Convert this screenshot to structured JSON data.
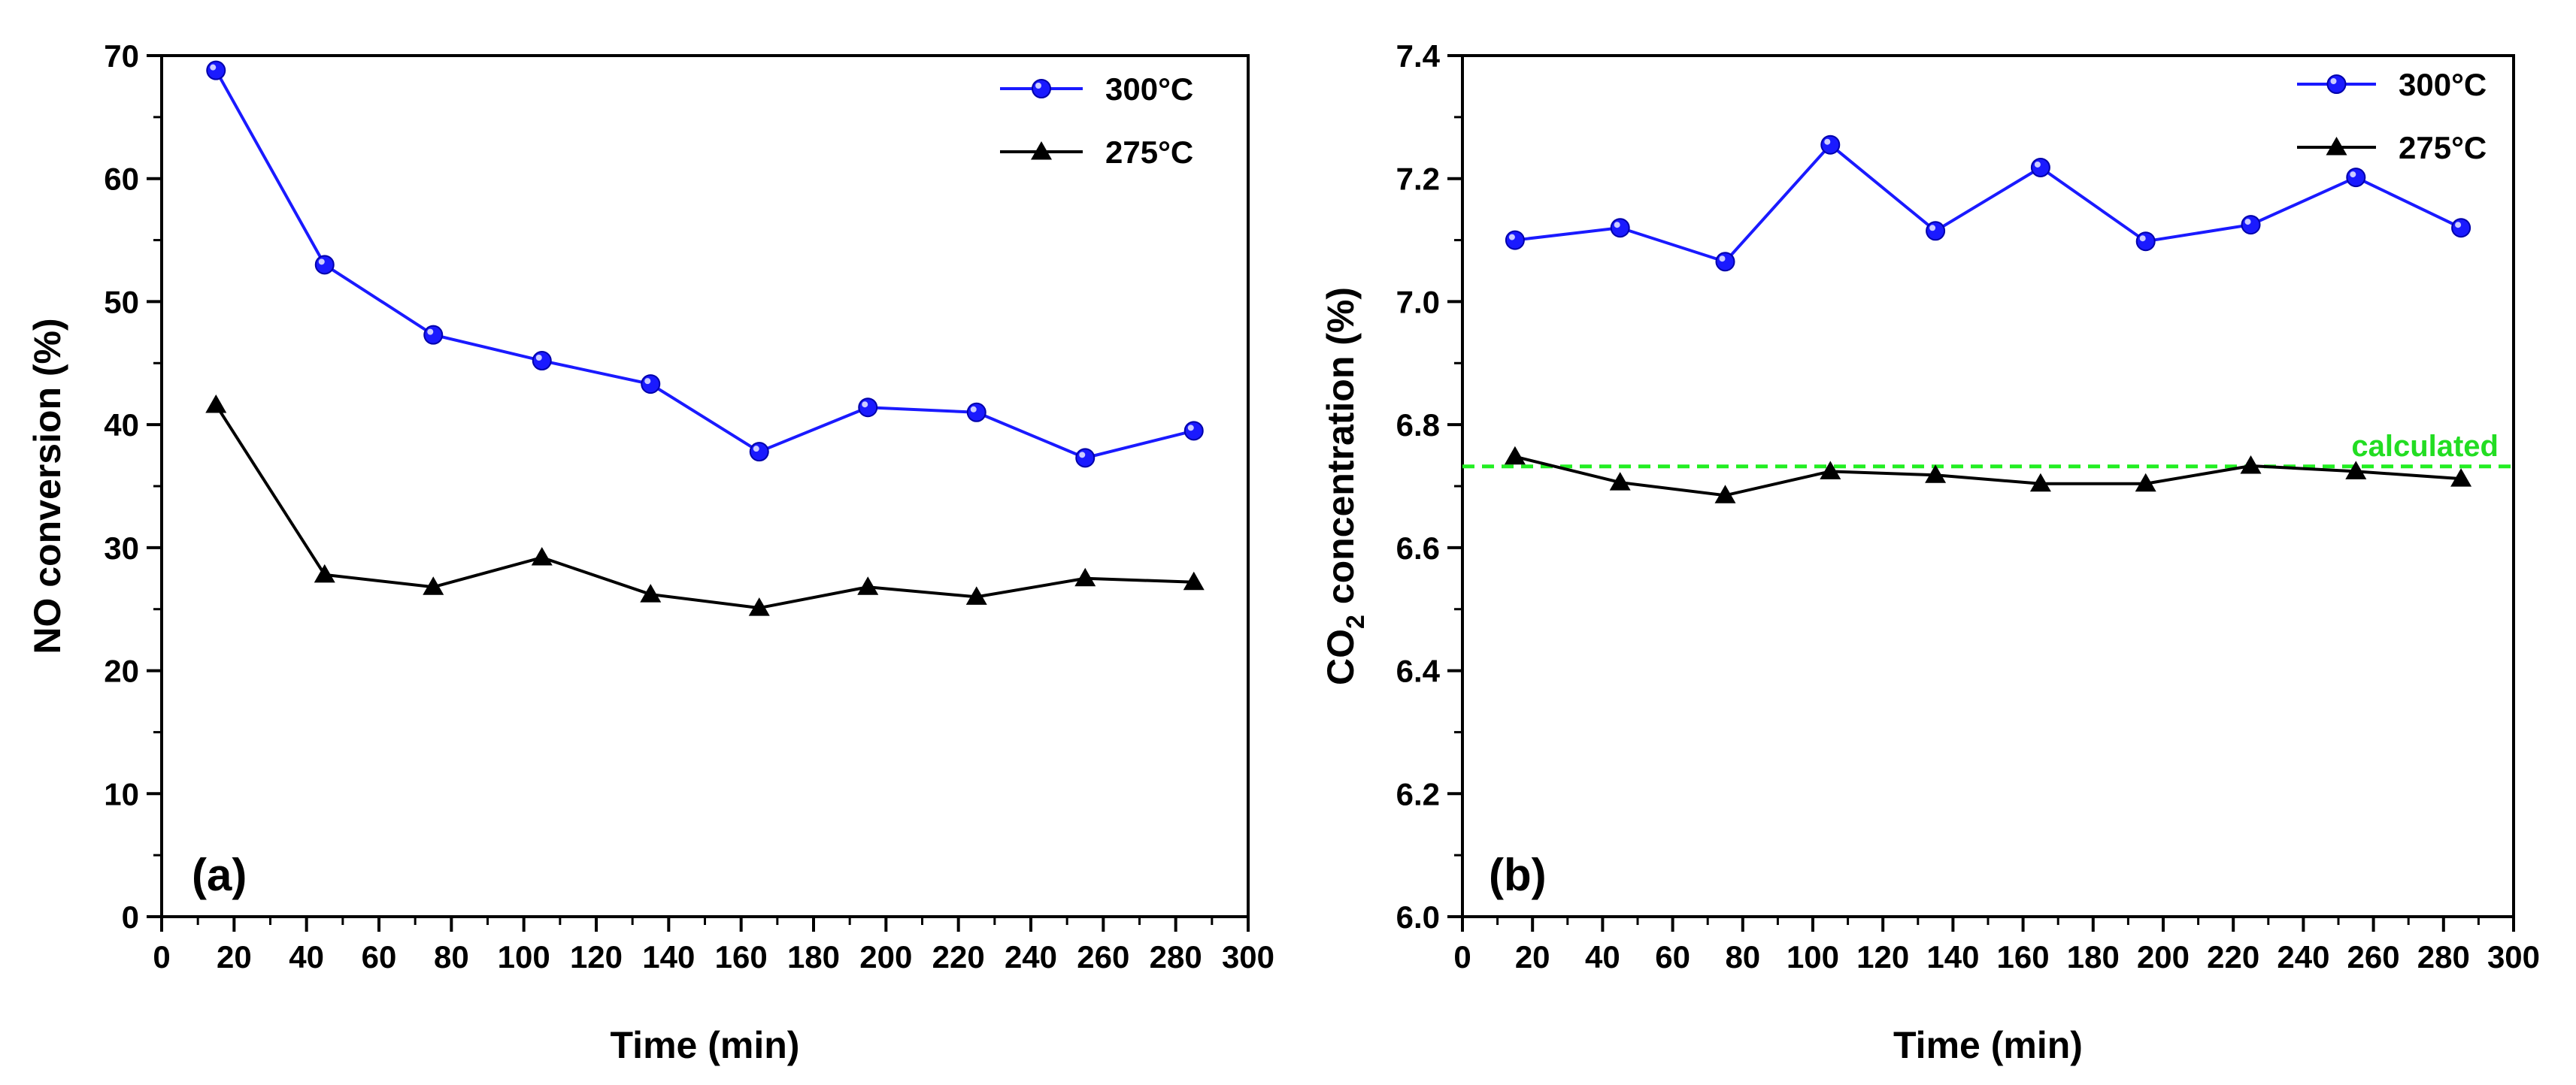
{
  "chart_data": [
    {
      "type": "line",
      "panel_label": "(a)",
      "title": "",
      "xlabel": "Time (min)",
      "ylabel": "NO conversion (%)",
      "xlim": [
        0,
        300
      ],
      "ylim": [
        0,
        70
      ],
      "xticks": [
        0,
        20,
        40,
        60,
        80,
        100,
        120,
        140,
        160,
        180,
        200,
        220,
        240,
        260,
        280,
        300
      ],
      "yticks": [
        0,
        10,
        20,
        30,
        40,
        50,
        60,
        70
      ],
      "grid": false,
      "legend_position": "top-right",
      "x": [
        15,
        45,
        75,
        105,
        135,
        165,
        195,
        225,
        255,
        285
      ],
      "series": [
        {
          "name": "300°C",
          "color": "#1a1aff",
          "marker": "circle",
          "values": [
            68.8,
            53.0,
            47.3,
            45.2,
            43.3,
            37.8,
            41.4,
            41.0,
            37.3,
            39.5
          ]
        },
        {
          "name": "275°C",
          "color": "#000000",
          "marker": "triangle",
          "values": [
            41.6,
            27.8,
            26.8,
            29.2,
            26.2,
            25.1,
            26.8,
            26.0,
            27.5,
            27.2
          ]
        }
      ]
    },
    {
      "type": "line",
      "panel_label": "(b)",
      "title": "",
      "xlabel": "Time (min)",
      "ylabel_main": "CO",
      "ylabel_sub": "2",
      "ylabel_rest": " concentration (%)",
      "xlim": [
        0,
        300
      ],
      "ylim": [
        6.0,
        7.4
      ],
      "xticks": [
        0,
        20,
        40,
        60,
        80,
        100,
        120,
        140,
        160,
        180,
        200,
        220,
        240,
        260,
        280,
        300
      ],
      "yticks": [
        6.0,
        6.2,
        6.4,
        6.6,
        6.8,
        7.0,
        7.2,
        7.4
      ],
      "grid": false,
      "legend_position": "top-right",
      "x": [
        15,
        45,
        75,
        105,
        135,
        165,
        195,
        225,
        255,
        285
      ],
      "series": [
        {
          "name": "300°C",
          "color": "#1a1aff",
          "marker": "circle",
          "values": [
            7.1,
            7.12,
            7.065,
            7.255,
            7.115,
            7.218,
            7.098,
            7.125,
            7.202,
            7.12
          ]
        },
        {
          "name": "275°C",
          "color": "#000000",
          "marker": "triangle",
          "values": [
            6.748,
            6.706,
            6.685,
            6.724,
            6.718,
            6.704,
            6.704,
            6.733,
            6.724,
            6.712
          ]
        }
      ],
      "reference_line": {
        "label": "calculated",
        "value": 6.732,
        "color": "#22ee22"
      }
    }
  ]
}
